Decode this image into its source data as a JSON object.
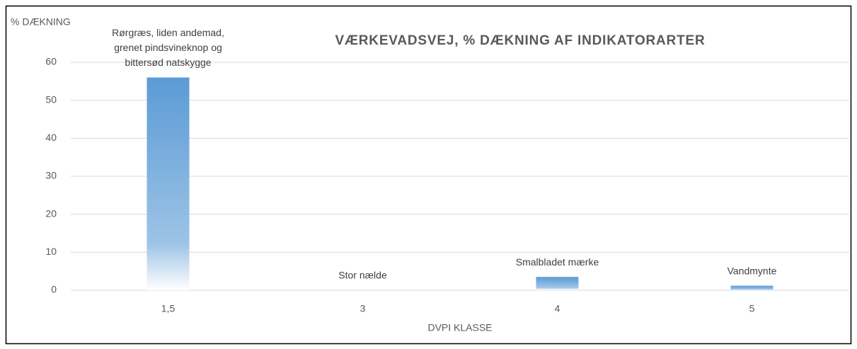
{
  "chart_data": {
    "type": "bar",
    "title": "VÆRKEVADSVEJ, % DÆKNING AF INDIKATORARTER",
    "y_label": "% DÆKNING",
    "x_label": "DVPI KLASSE",
    "categories": [
      "1,5",
      "3",
      "4",
      "5"
    ],
    "values": [
      56,
      0,
      3.5,
      1.2
    ],
    "bar_labels": [
      [
        "Rørgræs, liden andemad,",
        "grenet pindsvineknop og",
        "bittersød natskygge"
      ],
      [
        "Stor nælde"
      ],
      [
        "Smalbladet mærke"
      ],
      [
        "Vandmynte"
      ]
    ],
    "color": "#5b9bd5",
    "ylim": [
      0,
      60
    ],
    "yticks": [
      0,
      10,
      20,
      30,
      40,
      50,
      60
    ],
    "grid": true
  }
}
